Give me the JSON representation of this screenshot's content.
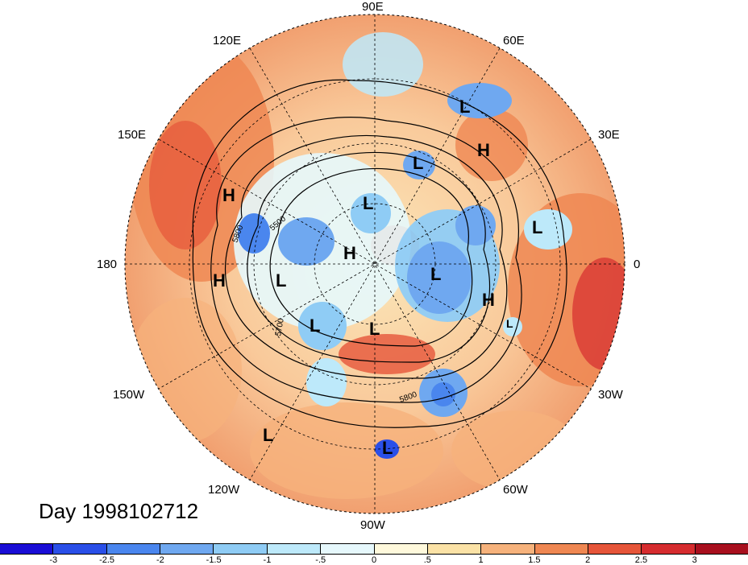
{
  "lon_labels": {
    "e90": "90E",
    "e120": "120E",
    "e60": "60E",
    "e150": "150E",
    "e30": "30E",
    "d180": "180",
    "d0": "0",
    "w150": "150W",
    "w30": "30W",
    "w120": "120W",
    "w60": "60W",
    "w90": "90W"
  },
  "contour_labels": [
    "5500",
    "5800",
    "5700",
    "5800"
  ],
  "highs_lows": [
    "L",
    "H",
    "L",
    "H",
    "L",
    "L",
    "H",
    "L",
    "H",
    "L",
    "L",
    "H",
    "L",
    "L",
    "L",
    "L"
  ],
  "date_label": "Day 1998102712",
  "colorbar": {
    "colors": [
      "#1a0dd6",
      "#2a4fe8",
      "#4a86ee",
      "#6fa8f0",
      "#8fccf5",
      "#bde9fa",
      "#e6f8fc",
      "#fff9dc",
      "#fbe2a6",
      "#f6b27c",
      "#ef8752",
      "#e65539",
      "#d62c2f",
      "#a80f1e"
    ],
    "tick_labels": [
      "-3",
      "-2.5",
      "-2",
      "-1.5",
      "-1",
      "-.5",
      "0",
      ".5",
      "1",
      "1.5",
      "2",
      "2.5",
      "3"
    ]
  }
}
